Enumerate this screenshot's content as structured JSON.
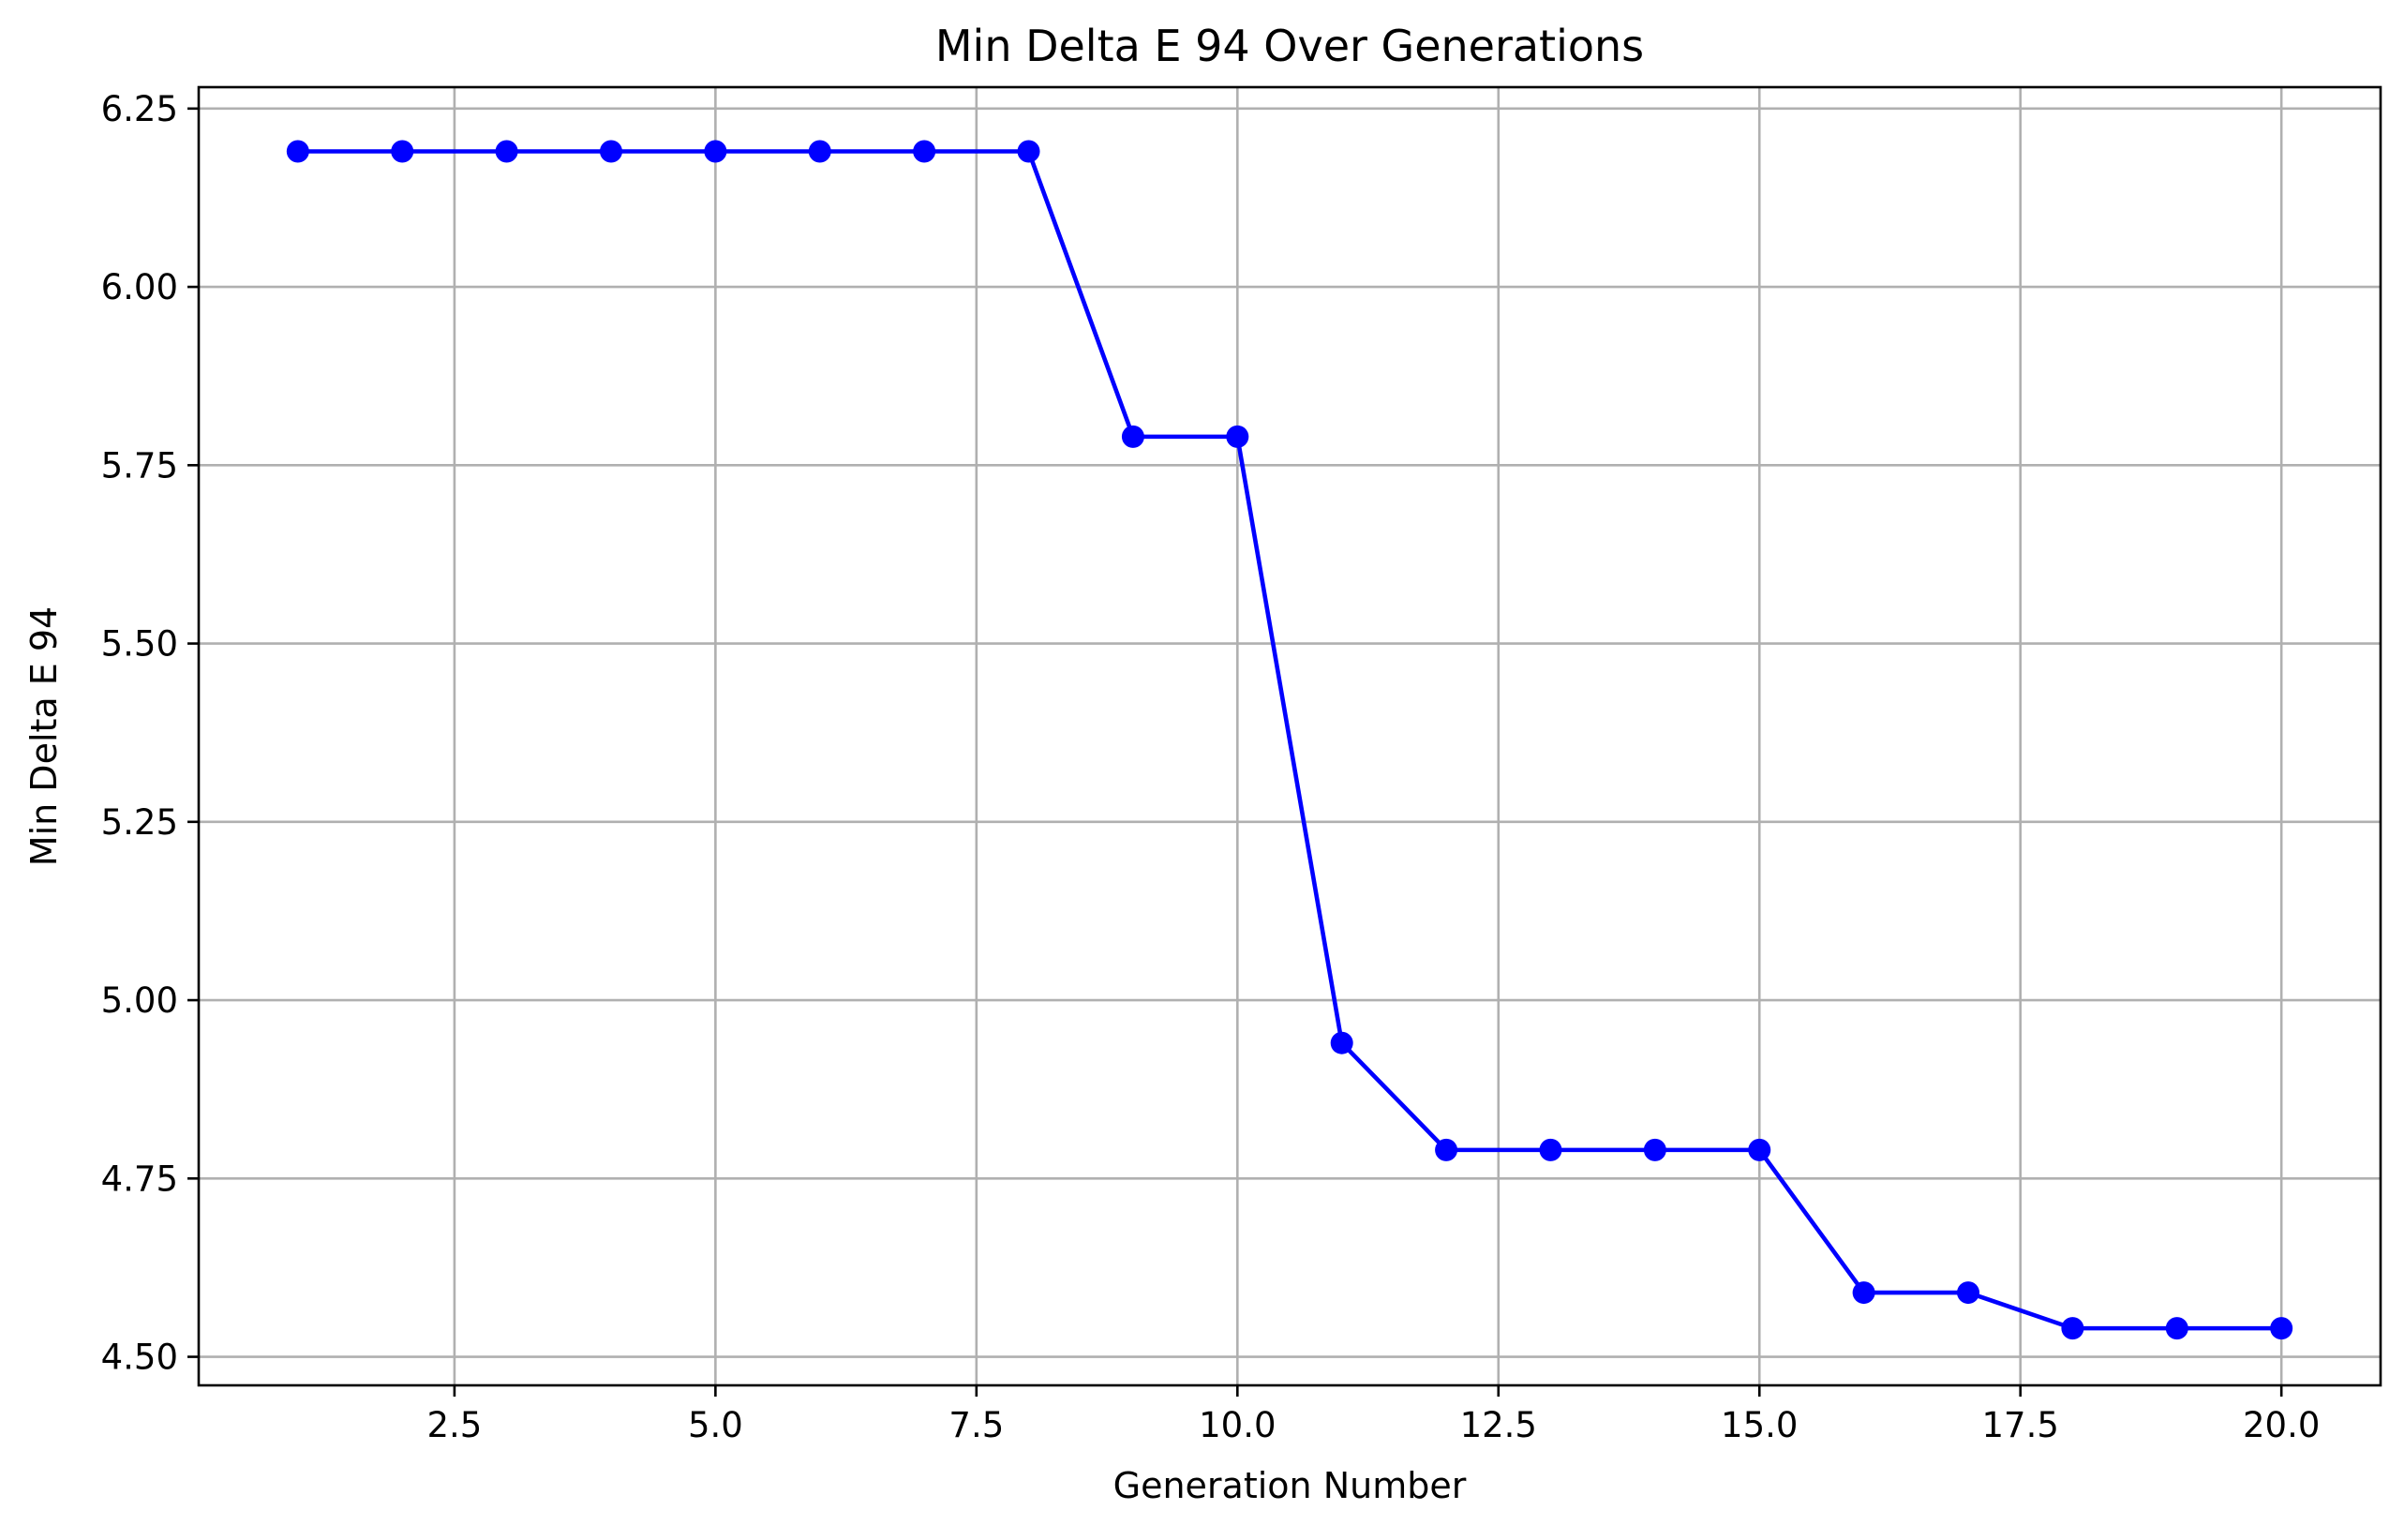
{
  "chart_data": {
    "type": "line",
    "title": "Min Delta E 94 Over Generations",
    "xlabel": "Generation Number",
    "ylabel": "Min Delta E 94",
    "xlim": [
      0.05,
      20.95
    ],
    "ylim": [
      4.46,
      6.28
    ],
    "xticks": [
      2.5,
      5.0,
      7.5,
      10.0,
      12.5,
      15.0,
      17.5,
      20.0
    ],
    "xtick_labels": [
      "2.5",
      "5.0",
      "7.5",
      "10.0",
      "12.5",
      "15.0",
      "17.5",
      "20.0"
    ],
    "yticks": [
      4.5,
      4.75,
      5.0,
      5.25,
      5.5,
      5.75,
      6.0,
      6.25
    ],
    "ytick_labels": [
      "4.50",
      "4.75",
      "5.00",
      "5.25",
      "5.50",
      "5.75",
      "6.00",
      "6.25"
    ],
    "grid": true,
    "legend": "none",
    "series": [
      {
        "color": "#0000ff",
        "marker": "circle",
        "x": [
          1,
          2,
          3,
          4,
          5,
          6,
          7,
          8,
          9,
          10,
          11,
          12,
          13,
          14,
          15,
          16,
          17,
          18,
          19,
          20
        ],
        "y": [
          6.19,
          6.19,
          6.19,
          6.19,
          6.19,
          6.19,
          6.19,
          6.19,
          5.79,
          5.79,
          4.94,
          4.79,
          4.79,
          4.79,
          4.79,
          4.59,
          4.59,
          4.54,
          4.54,
          4.54
        ]
      }
    ]
  }
}
